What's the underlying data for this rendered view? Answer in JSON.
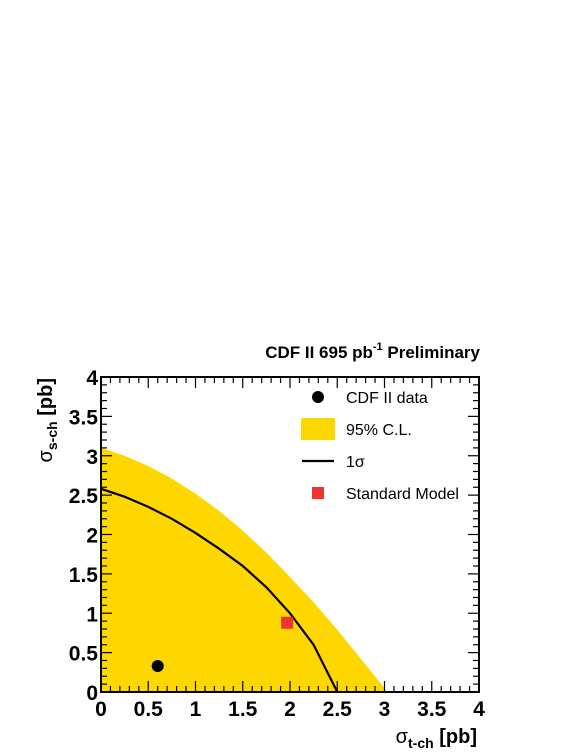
{
  "chart_data": {
    "type": "scatter",
    "title": {
      "main": "CDF II 695 pb",
      "superscript": "-1",
      "suffix": " Preliminary"
    },
    "xlabel": {
      "symbol": "σ",
      "subscript": "t-ch",
      "unit": " [pb]"
    },
    "ylabel": {
      "symbol": "σ",
      "subscript": "s-ch",
      "unit": " [pb]"
    },
    "xlim": [
      0,
      4
    ],
    "ylim": [
      0,
      4
    ],
    "x_ticks": [
      "0",
      "0.5",
      "1",
      "1.5",
      "2",
      "2.5",
      "3",
      "3.5",
      "4"
    ],
    "y_ticks": [
      "0",
      "0.5",
      "1",
      "1.5",
      "2",
      "2.5",
      "3",
      "3.5",
      "4"
    ],
    "grid": false,
    "legend_position": "top-right",
    "series": [
      {
        "name": "CDF II data",
        "kind": "point",
        "marker": "circle",
        "color": "#000000",
        "points": [
          [
            0.6,
            0.33
          ]
        ]
      },
      {
        "name": "95% C.L.",
        "kind": "region",
        "color": "#ffd700",
        "boundary": [
          [
            0,
            3.1
          ],
          [
            0.25,
            3.0
          ],
          [
            0.5,
            2.87
          ],
          [
            0.75,
            2.71
          ],
          [
            1.0,
            2.52
          ],
          [
            1.25,
            2.3
          ],
          [
            1.5,
            2.05
          ],
          [
            1.75,
            1.77
          ],
          [
            2.0,
            1.46
          ],
          [
            2.25,
            1.14
          ],
          [
            2.5,
            0.79
          ],
          [
            2.75,
            0.42
          ],
          [
            3.0,
            0.05
          ],
          [
            3.02,
            0
          ]
        ]
      },
      {
        "name": "1σ",
        "kind": "line",
        "color": "#000000",
        "points": [
          [
            0,
            2.58
          ],
          [
            0.25,
            2.48
          ],
          [
            0.5,
            2.35
          ],
          [
            0.75,
            2.2
          ],
          [
            1.0,
            2.02
          ],
          [
            1.25,
            1.82
          ],
          [
            1.5,
            1.6
          ],
          [
            1.75,
            1.33
          ],
          [
            2.0,
            1.0
          ],
          [
            2.25,
            0.6
          ],
          [
            2.5,
            0
          ]
        ]
      },
      {
        "name": "Standard Model",
        "kind": "point",
        "marker": "square",
        "color": "#ee3333",
        "points": [
          [
            1.97,
            0.88
          ]
        ]
      }
    ]
  }
}
